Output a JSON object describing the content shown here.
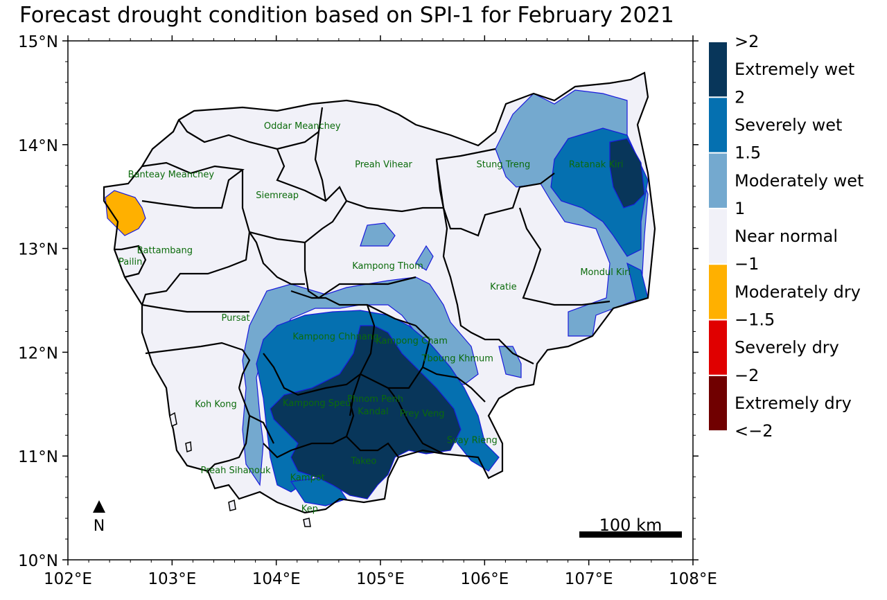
{
  "title": "Forecast drought condition based on SPI-1 for February 2021",
  "axes": {
    "x_ticks": [
      "102°E",
      "103°E",
      "104°E",
      "105°E",
      "106°E",
      "107°E",
      "108°E"
    ],
    "y_ticks": [
      "15°N",
      "14°N",
      "13°N",
      "12°N",
      "11°N",
      "10°N"
    ],
    "x_range": [
      102,
      108
    ],
    "y_range": [
      10,
      15
    ]
  },
  "provinces": [
    {
      "name": "Oddar Meanchey",
      "lon": 104.25,
      "lat": 14.18
    },
    {
      "name": "Preah Vihear",
      "lon": 105.03,
      "lat": 13.81
    },
    {
      "name": "Stung Treng",
      "lon": 106.18,
      "lat": 13.81
    },
    {
      "name": "Ratanak Kiri",
      "lon": 107.07,
      "lat": 13.81
    },
    {
      "name": "Banteay Meanchey",
      "lon": 102.99,
      "lat": 13.71
    },
    {
      "name": "Siemreap",
      "lon": 104.01,
      "lat": 13.51
    },
    {
      "name": "Battambang",
      "lon": 102.93,
      "lat": 12.98
    },
    {
      "name": "Pailin",
      "lon": 102.6,
      "lat": 12.87
    },
    {
      "name": "Kampong Thom",
      "lon": 105.07,
      "lat": 12.83
    },
    {
      "name": "Mondul Kiri",
      "lon": 107.16,
      "lat": 12.77
    },
    {
      "name": "Kratie",
      "lon": 106.18,
      "lat": 12.63
    },
    {
      "name": "Pursat",
      "lon": 103.61,
      "lat": 12.33
    },
    {
      "name": "Kampong Chhnang",
      "lon": 104.57,
      "lat": 12.15
    },
    {
      "name": "Kampong Cham",
      "lon": 105.3,
      "lat": 12.11
    },
    {
      "name": "Tboung Khmum",
      "lon": 105.74,
      "lat": 11.94
    },
    {
      "name": "Koh Kong",
      "lon": 103.42,
      "lat": 11.5
    },
    {
      "name": "Kampong Speu",
      "lon": 104.39,
      "lat": 11.51
    },
    {
      "name": "Phnom Penh",
      "lon": 104.95,
      "lat": 11.55
    },
    {
      "name": "Kandal",
      "lon": 104.93,
      "lat": 11.43
    },
    {
      "name": "Prey Veng",
      "lon": 105.4,
      "lat": 11.41
    },
    {
      "name": "Svay Rieng",
      "lon": 105.88,
      "lat": 11.15
    },
    {
      "name": "Takeo",
      "lon": 104.84,
      "lat": 10.95
    },
    {
      "name": "Preah Sihanouk",
      "lon": 103.61,
      "lat": 10.86
    },
    {
      "name": "Kampot",
      "lon": 104.3,
      "lat": 10.79
    },
    {
      "name": "Kep",
      "lon": 104.32,
      "lat": 10.49
    }
  ],
  "legend": {
    "boundaries": [
      ">2",
      "2",
      "1.5",
      "1",
      "−1",
      "−1.5",
      "−2",
      "<−2"
    ],
    "classes": [
      {
        "label": "Extremely wet",
        "color": "#08365a"
      },
      {
        "label": "Severely wet",
        "color": "#0570b0"
      },
      {
        "label": "Moderately wet",
        "color": "#74a9cf"
      },
      {
        "label": "Near normal",
        "color": "#f1f1f8"
      },
      {
        "label": "Moderately dry",
        "color": "#ffb000"
      },
      {
        "label": "Severely dry",
        "color": "#e00000"
      },
      {
        "label": "Extremely dry",
        "color": "#700000"
      }
    ]
  },
  "north_arrow": {
    "label": "N"
  },
  "scale_bar": {
    "label": "100 km"
  },
  "colors": {
    "boundary": "#000000",
    "contour": "#1a1adc",
    "province_label": "#0b6b0b"
  }
}
